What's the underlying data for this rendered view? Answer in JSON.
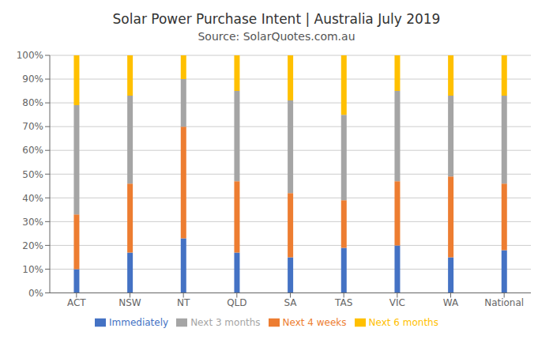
{
  "chart_data": {
    "type": "bar",
    "title": "Solar Power Purchase Intent | Australia July 2019",
    "subtitle": "Source: SolarQuotes.com.au",
    "categories": [
      "ACT",
      "NSW",
      "NT",
      "QLD",
      "SA",
      "TAS",
      "VIC",
      "WA",
      "National"
    ],
    "series": [
      {
        "name": "Immediately",
        "color": "#4472C4",
        "values": [
          10,
          17,
          23,
          17,
          15,
          19,
          20,
          15,
          18
        ]
      },
      {
        "name": "Next 4 weeks",
        "color": "#ED7D31",
        "values": [
          23,
          29,
          47,
          30,
          27,
          20,
          27,
          34,
          28
        ]
      },
      {
        "name": "Next 3 months",
        "color": "#A5A5A5",
        "values": [
          46,
          37,
          20,
          38,
          39,
          36,
          38,
          34,
          37
        ]
      },
      {
        "name": "Next 6 months",
        "color": "#FFC000",
        "values": [
          21,
          17,
          10,
          15,
          19,
          25,
          15,
          17,
          17
        ]
      }
    ],
    "stacked": true,
    "ylim": [
      0,
      100
    ],
    "yticks": [
      {
        "value": 0,
        "label": "0%"
      },
      {
        "value": 10,
        "label": "10%"
      },
      {
        "value": 20,
        "label": "20%"
      },
      {
        "value": 30,
        "label": "30%"
      },
      {
        "value": 40,
        "label": "40%"
      },
      {
        "value": 50,
        "label": "50%"
      },
      {
        "value": 60,
        "label": "60%"
      },
      {
        "value": 70,
        "label": "70%"
      },
      {
        "value": 80,
        "label": "80%"
      },
      {
        "value": 90,
        "label": "90%"
      },
      {
        "value": 100,
        "label": "100%"
      }
    ],
    "grid": true,
    "legend": "bottom"
  }
}
